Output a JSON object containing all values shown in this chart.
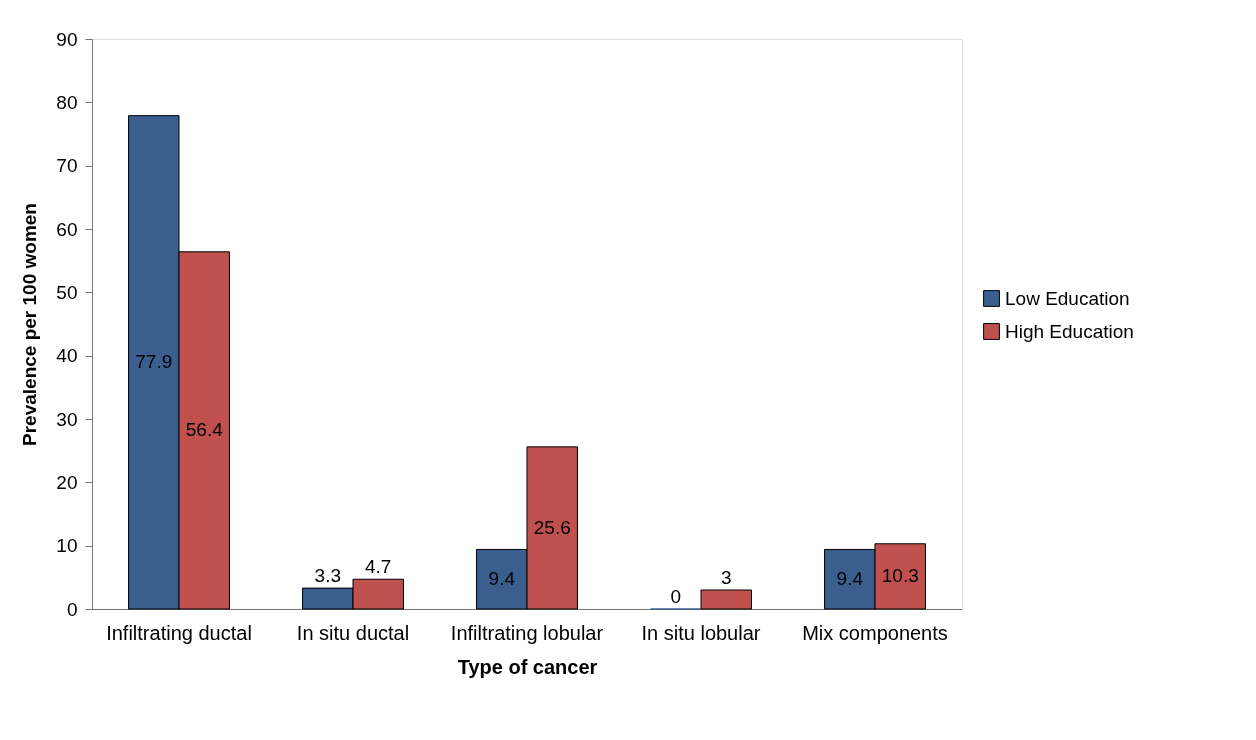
{
  "chart_data": {
    "type": "bar",
    "xlabel": "Type of cancer",
    "ylabel": "Prevalence per 100 women",
    "categories": [
      "Infiltrating ductal",
      "In situ ductal",
      "Infiltrating lobular",
      "In situ lobular",
      "Mix components"
    ],
    "series": [
      {
        "name": "Low Education",
        "color": "#3a5f8f",
        "values": [
          77.9,
          3.3,
          9.4,
          0,
          9.4
        ]
      },
      {
        "name": "High Education",
        "color": "#c0504d",
        "values": [
          56.4,
          4.7,
          25.6,
          3,
          10.3
        ]
      }
    ],
    "ylim": [
      0,
      90
    ],
    "yticks": [
      0,
      10,
      20,
      30,
      40,
      50,
      60,
      70,
      80,
      90
    ],
    "data_labels": true,
    "legend": "right",
    "grid": false
  }
}
